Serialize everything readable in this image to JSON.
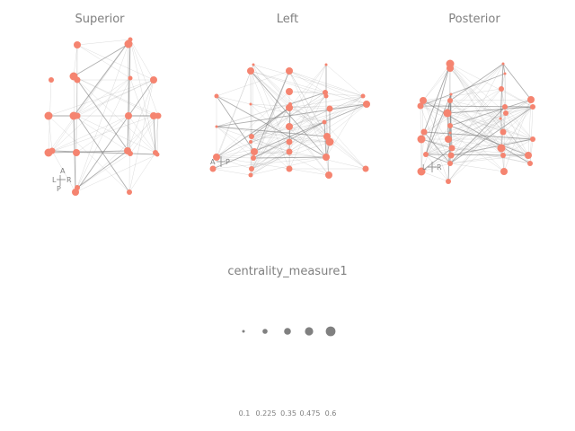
{
  "panels": [
    {
      "title": "Superior",
      "orientation": {
        "top": "A",
        "left": "L",
        "right": "R",
        "bottom": "P"
      }
    },
    {
      "title": "Left",
      "orientation": {
        "top": "",
        "left": "A",
        "right": "P",
        "bottom": ""
      }
    },
    {
      "title": "Posterior",
      "orientation": {
        "top": "",
        "left": "L",
        "right": "R",
        "bottom": ""
      }
    }
  ],
  "legend": {
    "title": "centrality_measure1",
    "values": [
      "0.1",
      "0.225",
      "0.35",
      "0.475",
      "0.6"
    ]
  },
  "colors": {
    "node": "#f58470",
    "edge": "#9a9a9a",
    "legend_dot": "#808080",
    "text": "#808080"
  }
}
